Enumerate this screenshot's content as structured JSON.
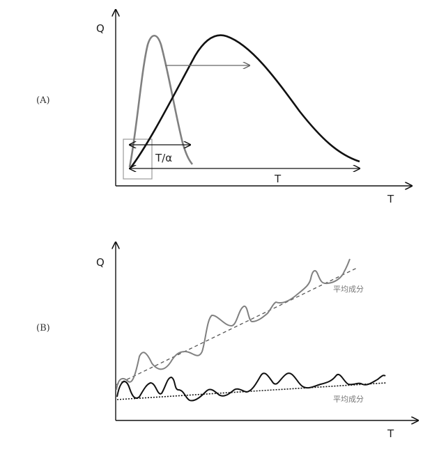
{
  "panel_a": {
    "tag": "(A)",
    "y_axis_label": "Q",
    "x_axis_label": "T",
    "short_span_label": "T/α",
    "long_span_label": "T"
  },
  "panel_b": {
    "tag": "(B)",
    "y_axis_label": "Q",
    "x_axis_label": "T",
    "upper_trend_label": "平均成分",
    "lower_trend_label": "平均成分"
  },
  "colors": {
    "ink": "#111111",
    "gray_curve": "#808080",
    "gray_arrow": "#666666"
  }
}
